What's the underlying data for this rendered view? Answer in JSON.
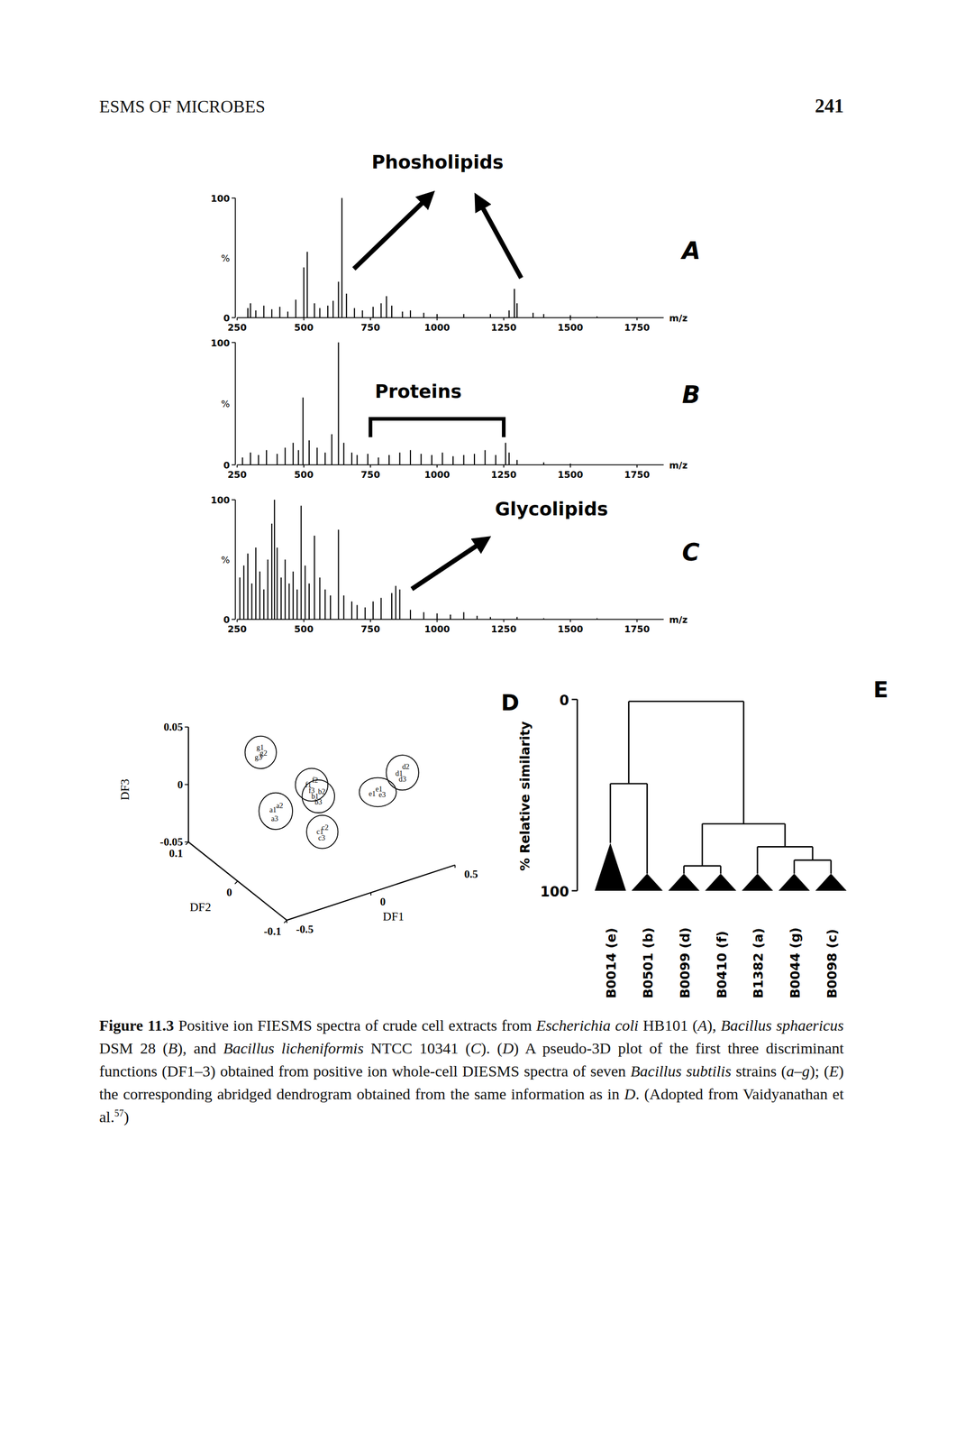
{
  "header": {
    "running_head": "ESMS OF MICROBES",
    "page_number": 241
  },
  "chart_data": [
    {
      "type": "spectrum",
      "panel": "A",
      "x_label": "m/z",
      "y_label": "%",
      "xlim": [
        250,
        1850
      ],
      "xticks": [
        250,
        500,
        750,
        1000,
        1250,
        1500,
        1750
      ],
      "ylim": [
        0,
        100
      ],
      "yticks": [
        0,
        100
      ],
      "x": [
        290,
        300,
        320,
        350,
        380,
        410,
        440,
        470,
        500,
        513,
        540,
        560,
        590,
        610,
        630,
        643,
        660,
        690,
        720,
        760,
        790,
        810,
        830,
        870,
        900,
        950,
        1000,
        1100,
        1200,
        1270,
        1290,
        1300,
        1360,
        1400,
        1500,
        1600
      ],
      "values": [
        8,
        12,
        6,
        10,
        7,
        9,
        5,
        15,
        42,
        55,
        12,
        8,
        10,
        14,
        30,
        100,
        20,
        8,
        6,
        9,
        12,
        18,
        10,
        5,
        6,
        4,
        3,
        3,
        3,
        6,
        24,
        12,
        4,
        3,
        2,
        1
      ],
      "annotations": [
        {
          "text": "Phosholipids"
        }
      ]
    },
    {
      "type": "spectrum",
      "panel": "B",
      "x_label": "m/z",
      "y_label": "%",
      "xlim": [
        250,
        1850
      ],
      "xticks": [
        250,
        500,
        750,
        1000,
        1250,
        1500,
        1750
      ],
      "ylim": [
        0,
        100
      ],
      "yticks": [
        0,
        100
      ],
      "x": [
        270,
        300,
        330,
        360,
        400,
        430,
        460,
        480,
        497,
        520,
        550,
        580,
        605,
        630,
        650,
        680,
        700,
        740,
        780,
        820,
        860,
        900,
        940,
        980,
        1020,
        1060,
        1100,
        1140,
        1180,
        1220,
        1257,
        1270,
        1300,
        1400,
        1500
      ],
      "values": [
        6,
        10,
        8,
        12,
        9,
        14,
        18,
        12,
        55,
        20,
        14,
        10,
        25,
        100,
        18,
        10,
        8,
        9,
        6,
        8,
        10,
        12,
        9,
        8,
        10,
        7,
        8,
        9,
        12,
        8,
        18,
        10,
        4,
        2,
        1
      ],
      "annotations": [
        {
          "text": "Proteins",
          "range": [
            750,
            1250
          ]
        }
      ]
    },
    {
      "type": "spectrum",
      "panel": "C",
      "x_label": "m/z",
      "y_label": "%",
      "xlim": [
        250,
        1850
      ],
      "xticks": [
        250,
        500,
        750,
        1000,
        1250,
        1500,
        1750
      ],
      "ylim": [
        0,
        100
      ],
      "yticks": [
        0,
        100
      ],
      "x": [
        260,
        275,
        290,
        305,
        320,
        335,
        350,
        365,
        380,
        390,
        400,
        415,
        430,
        445,
        460,
        475,
        490,
        505,
        520,
        540,
        560,
        580,
        600,
        630,
        650,
        680,
        700,
        730,
        760,
        790,
        830,
        845,
        860,
        900,
        950,
        1000,
        1050,
        1100,
        1150,
        1200,
        1300,
        1400,
        1600
      ],
      "values": [
        35,
        45,
        55,
        30,
        60,
        40,
        25,
        50,
        80,
        100,
        60,
        35,
        50,
        30,
        40,
        25,
        95,
        45,
        30,
        70,
        35,
        25,
        20,
        75,
        20,
        15,
        12,
        10,
        15,
        18,
        22,
        28,
        25,
        8,
        6,
        5,
        4,
        6,
        3,
        2,
        2,
        1,
        1
      ],
      "annotations": [
        {
          "text": "Glycolipids"
        }
      ]
    },
    {
      "type": "scatter3d",
      "panel": "D",
      "x_label": "DF1",
      "y_label": "DF2",
      "z_label": "DF3",
      "xlim": [
        -0.5,
        0.5
      ],
      "xticks": [
        -0.5,
        0,
        0.5
      ],
      "ylim": [
        -0.1,
        0.1
      ],
      "yticks": [
        -0.1,
        0,
        0.1
      ],
      "zlim": [
        -0.05,
        0.05
      ],
      "zticks": [
        -0.05,
        0,
        0.05
      ],
      "groups": [
        {
          "points": [
            {
              "label": "g1",
              "x": -0.22,
              "y": 0.05,
              "z": 0.036
            },
            {
              "label": "g2",
              "x": -0.2,
              "y": 0.05,
              "z": 0.03
            },
            {
              "label": "g3",
              "x": -0.23,
              "y": 0.05,
              "z": 0.028
            }
          ]
        },
        {
          "points": [
            {
              "label": "a1",
              "x": -0.29,
              "y": 0,
              "z": 0.002
            },
            {
              "label": "a2",
              "x": -0.25,
              "y": 0,
              "z": 0.004
            },
            {
              "label": "a3",
              "x": -0.28,
              "y": 0,
              "z": -0.006
            }
          ]
        },
        {
          "points": [
            {
              "label": "f1",
              "x": -0.08,
              "y": 0,
              "z": 0.014
            },
            {
              "label": "f2",
              "x": -0.04,
              "y": 0,
              "z": 0.016
            },
            {
              "label": "f3",
              "x": -0.06,
              "y": 0,
              "z": 0.008
            }
          ]
        },
        {
          "points": [
            {
              "label": "b1",
              "x": -0.04,
              "y": 0,
              "z": 0.002
            },
            {
              "label": "b2",
              "x": 0,
              "y": 0,
              "z": 0.004
            },
            {
              "label": "b3",
              "x": -0.02,
              "y": 0,
              "z": -0.004
            }
          ]
        },
        {
          "points": [
            {
              "label": "c1",
              "x": -0.01,
              "y": 0,
              "z": -0.03
            },
            {
              "label": "c2",
              "x": 0.02,
              "y": 0,
              "z": -0.028
            },
            {
              "label": "c3",
              "x": 0,
              "y": 0,
              "z": -0.036
            }
          ]
        },
        {
          "points": [
            {
              "label": "e1",
              "x": 0.3,
              "y": 0,
              "z": -0.012
            },
            {
              "label": "e1",
              "x": 0.34,
              "y": 0,
              "z": -0.01
            },
            {
              "label": "e3",
              "x": 0.36,
              "y": 0,
              "z": -0.016
            }
          ]
        },
        {
          "points": [
            {
              "label": "d1",
              "x": 0.46,
              "y": 0,
              "z": -0.002
            },
            {
              "label": "d2",
              "x": 0.5,
              "y": 0,
              "z": 0.002
            },
            {
              "label": "d3",
              "x": 0.48,
              "y": 0,
              "z": -0.008
            }
          ]
        }
      ]
    },
    {
      "type": "dendrogram",
      "panel": "E",
      "y_label": "% Relative similarity",
      "ylim": [
        0,
        100
      ],
      "yticks": [
        0,
        100
      ],
      "leaves": [
        {
          "label": "B0014 (e)",
          "similarity": 75
        },
        {
          "label": "B0501 (b)",
          "similarity": 91
        },
        {
          "label": "B0099 (d)",
          "similarity": 91
        },
        {
          "label": "B0410 (f)",
          "similarity": 91
        },
        {
          "label": "B1382 (a)",
          "similarity": 91
        },
        {
          "label": "B0044 (g)",
          "similarity": 91
        },
        {
          "label": "B0098 (c)",
          "similarity": 91
        }
      ],
      "merges": [
        {
          "children": [
            0,
            1
          ],
          "similarity": 44
        },
        {
          "children": [
            2,
            3
          ],
          "similarity": 87
        },
        {
          "children": [
            5,
            6
          ],
          "similarity": 84
        },
        {
          "children": [
            4,
            9
          ],
          "similarity": 77
        },
        {
          "children": [
            8,
            10
          ],
          "similarity": 65
        },
        {
          "children": [
            7,
            11
          ],
          "similarity": 1
        }
      ]
    }
  ],
  "caption": [
    {
      "text": "Figure 11.3",
      "style": "bold"
    },
    {
      "text": " Positive ion FIESMS spectra of crude cell extracts from ",
      "style": "plain"
    },
    {
      "text": "Escherichia coli",
      "style": "italic"
    },
    {
      "text": " HB101 (",
      "style": "plain"
    },
    {
      "text": "A",
      "style": "italic"
    },
    {
      "text": "), ",
      "style": "plain"
    },
    {
      "text": "Bacillus sphaericus",
      "style": "italic"
    },
    {
      "text": " DSM 28 (",
      "style": "plain"
    },
    {
      "text": "B",
      "style": "italic"
    },
    {
      "text": "), and ",
      "style": "plain"
    },
    {
      "text": "Bacillus licheniformis",
      "style": "italic"
    },
    {
      "text": " NTCC 10341 (",
      "style": "plain"
    },
    {
      "text": "C",
      "style": "italic"
    },
    {
      "text": "). (",
      "style": "plain"
    },
    {
      "text": "D",
      "style": "italic"
    },
    {
      "text": ") A pseudo-3D plot of the first three discriminant functions (DF1–3) obtained from positive ion whole-cell DIESMS spectra of seven ",
      "style": "plain"
    },
    {
      "text": "Bacillus subtilis",
      "style": "italic"
    },
    {
      "text": " strains (",
      "style": "plain"
    },
    {
      "text": "a–g",
      "style": "italic"
    },
    {
      "text": "); (",
      "style": "plain"
    },
    {
      "text": "E",
      "style": "italic"
    },
    {
      "text": ") the corresponding abridged dendrogram obtained from the same information as in ",
      "style": "plain"
    },
    {
      "text": "D",
      "style": "italic"
    },
    {
      "text": ". (Adopted from Vaidyanathan et al.",
      "style": "plain"
    },
    {
      "text": "57",
      "style": "sup"
    },
    {
      "text": ")",
      "style": "plain"
    }
  ]
}
